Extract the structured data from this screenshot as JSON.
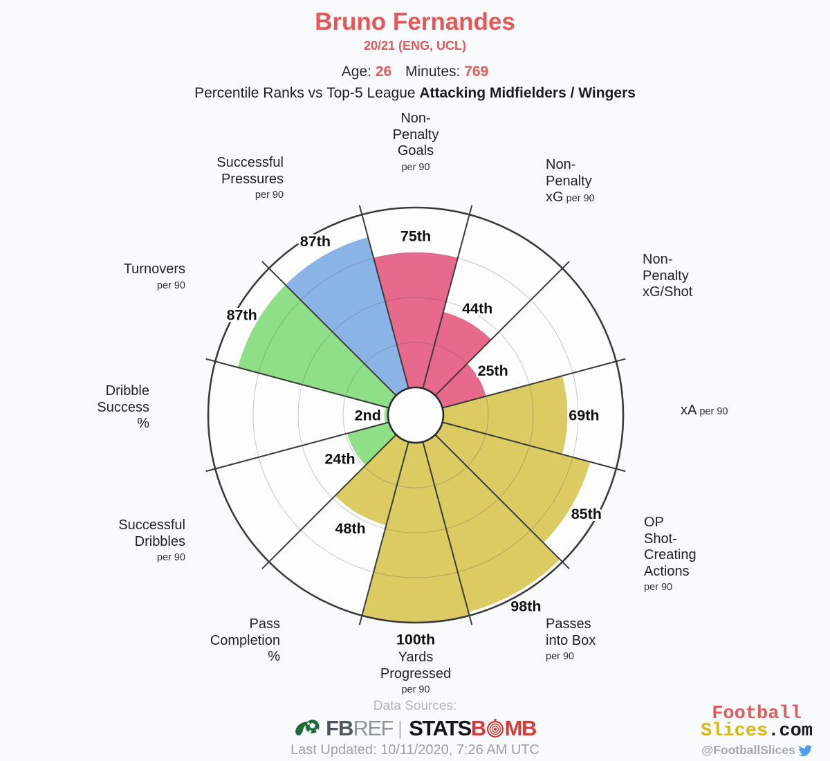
{
  "header": {
    "title": "Bruno Fernandes",
    "subtitle": "20/21 (ENG, UCL)",
    "age_label": "Age:",
    "age_value": "26",
    "minutes_label": "Minutes:",
    "minutes_value": "769",
    "ranks_prefix": "Percentile Ranks vs Top-5 League ",
    "ranks_bold": "Attacking Midfielders / Wingers"
  },
  "chart_data": {
    "type": "pizza-polar-bar",
    "title": "Bruno Fernandes percentile ranks",
    "scale": [
      0,
      100
    ],
    "grid_rings": [
      25,
      50,
      75,
      100
    ],
    "colors": {
      "shooting": "#e7698c",
      "possession": "#dcca62",
      "dribbling": "#8fdf88",
      "pressing": "#8ab4e6",
      "grid": "#c9c9cb",
      "spoke": "#3a3a3a"
    },
    "slices": [
      {
        "label": "Non-Penalty Goals per 90",
        "lines": [
          "Non-",
          "Penalty",
          "Goals"
        ],
        "suffix": "per 90",
        "suffix_inline": false,
        "value": 75,
        "value_label": "75th",
        "color": "#e7698c"
      },
      {
        "label": "Non-Penalty xG per 90",
        "lines": [
          "Non-",
          "Penalty",
          "xG"
        ],
        "suffix": "per 90",
        "suffix_inline": true,
        "value": 44,
        "value_label": "44th",
        "color": "#e7698c"
      },
      {
        "label": "Non-Penalty xG/Shot",
        "lines": [
          "Non-",
          "Penalty",
          "xG/Shot"
        ],
        "suffix": "",
        "suffix_inline": false,
        "value": 25,
        "value_label": "25th",
        "color": "#e7698c"
      },
      {
        "label": "xA per 90",
        "lines": [
          "xA"
        ],
        "suffix": "per 90",
        "suffix_inline": true,
        "value": 69,
        "value_label": "69th",
        "color": "#dcca62"
      },
      {
        "label": "OP Shot-Creating Actions per 90",
        "lines": [
          "OP",
          "Shot-",
          "Creating",
          "Actions"
        ],
        "suffix": "per 90",
        "suffix_inline": false,
        "value": 85,
        "value_label": "85th",
        "color": "#dcca62"
      },
      {
        "label": "Passes into Box per 90",
        "lines": [
          "Passes",
          "into Box"
        ],
        "suffix": "per 90",
        "suffix_inline": false,
        "value": 98,
        "value_label": "98th",
        "color": "#dcca62"
      },
      {
        "label": "Yards Progressed per 90",
        "lines": [
          "Yards",
          "Progressed"
        ],
        "suffix": "per 90",
        "suffix_inline": false,
        "value": 100,
        "value_label": "100th",
        "color": "#dcca62"
      },
      {
        "label": "Pass Completion %",
        "lines": [
          "Pass",
          "Completion",
          "%"
        ],
        "suffix": "",
        "suffix_inline": false,
        "value": 48,
        "value_label": "48th",
        "color": "#dcca62"
      },
      {
        "label": "Successful Dribbles per 90",
        "lines": [
          "Successful",
          "Dribbles"
        ],
        "suffix": "per 90",
        "suffix_inline": false,
        "value": 24,
        "value_label": "24th",
        "color": "#8fdf88"
      },
      {
        "label": "Dribble Success %",
        "lines": [
          "Dribble",
          "Success",
          "%"
        ],
        "suffix": "",
        "suffix_inline": false,
        "value": 2,
        "value_label": "2nd",
        "color": "#8fdf88"
      },
      {
        "label": "Turnovers per 90",
        "lines": [
          "Turnovers"
        ],
        "suffix": "per 90",
        "suffix_inline": false,
        "value": 87,
        "value_label": "87th",
        "color": "#8fdf88"
      },
      {
        "label": "Successful Pressures per 90",
        "lines": [
          "Successful",
          "Pressures"
        ],
        "suffix": "per 90",
        "suffix_inline": false,
        "value": 87,
        "value_label": "87th",
        "color": "#8ab4e6"
      }
    ]
  },
  "footer": {
    "data_sources_label": "Data Sources:",
    "fbref_fb": "FB",
    "fbref_ref": "REF",
    "separator": "|",
    "statsbomb_stats": "STATS",
    "statsbomb_b": "B",
    "statsbomb_mb": "MB",
    "last_updated": "Last Updated: 10/11/2020, 7:26 AM UTC"
  },
  "brand": {
    "line1": "Football",
    "line2": "Slices",
    "line2_suffix": ".com",
    "handle": "@FootballSlices"
  }
}
